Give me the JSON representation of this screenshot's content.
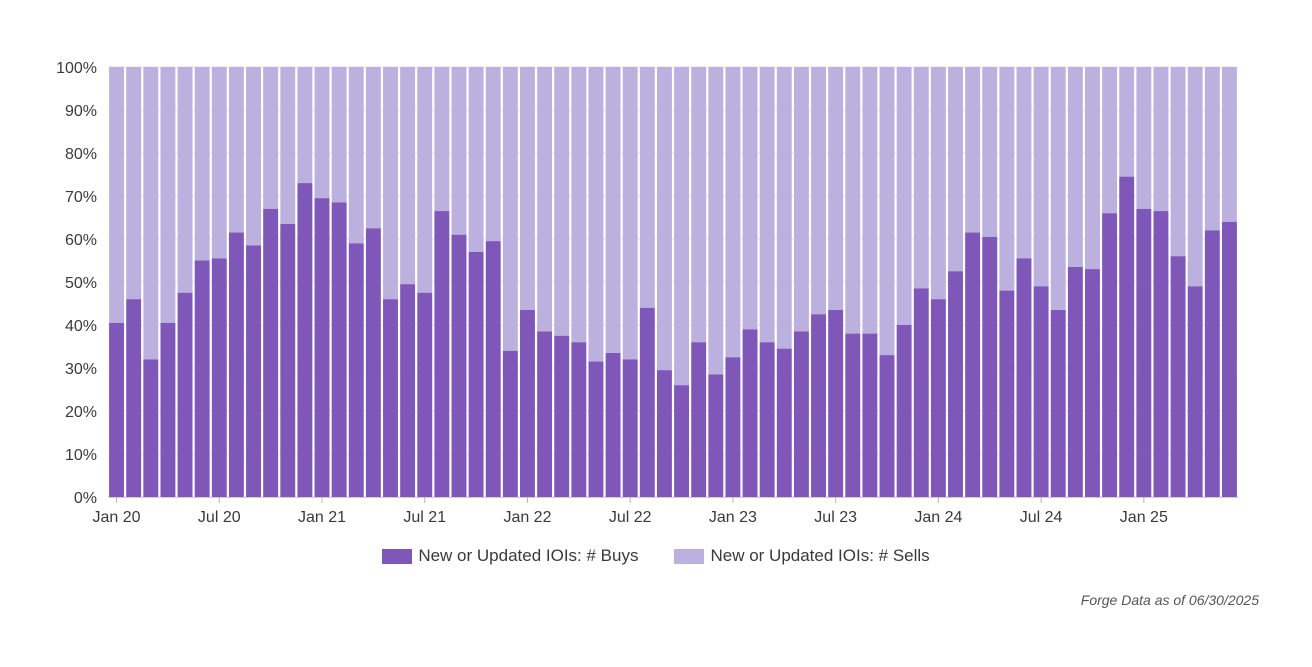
{
  "colors": {
    "buys": "#7e57b8",
    "sells": "#bcb1de",
    "grid": "#e6e6e6",
    "axis_text": "#3a3a3a"
  },
  "legend": {
    "buys_label": "New or Updated IOIs: # Buys",
    "sells_label": "New or Updated IOIs: # Sells"
  },
  "footnote": "Forge Data as of 06/30/2025",
  "chart_data": {
    "type": "bar",
    "stacked": true,
    "percent_stacked": true,
    "y_ticks": [
      "0%",
      "10%",
      "20%",
      "30%",
      "40%",
      "50%",
      "60%",
      "70%",
      "80%",
      "90%",
      "100%"
    ],
    "ylim": [
      0,
      100
    ],
    "x_tick_labels": [
      {
        "index": 0,
        "label": "Jan 20"
      },
      {
        "index": 6,
        "label": "Jul 20"
      },
      {
        "index": 12,
        "label": "Jan 21"
      },
      {
        "index": 18,
        "label": "Jul 21"
      },
      {
        "index": 24,
        "label": "Jan 22"
      },
      {
        "index": 30,
        "label": "Jul 22"
      },
      {
        "index": 36,
        "label": "Jan 23"
      },
      {
        "index": 42,
        "label": "Jul 23"
      },
      {
        "index": 48,
        "label": "Jan 24"
      },
      {
        "index": 54,
        "label": "Jul 24"
      },
      {
        "index": 60,
        "label": "Jan 25"
      }
    ],
    "months": [
      "Jan 20",
      "Feb 20",
      "Mar 20",
      "Apr 20",
      "May 20",
      "Jun 20",
      "Jul 20",
      "Aug 20",
      "Sep 20",
      "Oct 20",
      "Nov 20",
      "Dec 20",
      "Jan 21",
      "Feb 21",
      "Mar 21",
      "Apr 21",
      "May 21",
      "Jun 21",
      "Jul 21",
      "Aug 21",
      "Sep 21",
      "Oct 21",
      "Nov 21",
      "Dec 21",
      "Jan 22",
      "Feb 22",
      "Mar 22",
      "Apr 22",
      "May 22",
      "Jun 22",
      "Jul 22",
      "Aug 22",
      "Sep 22",
      "Oct 22",
      "Nov 22",
      "Dec 22",
      "Jan 23",
      "Feb 23",
      "Mar 23",
      "Apr 23",
      "May 23",
      "Jun 23",
      "Jul 23",
      "Aug 23",
      "Sep 23",
      "Oct 23",
      "Nov 23",
      "Dec 23",
      "Jan 24",
      "Feb 24",
      "Mar 24",
      "Apr 24",
      "May 24",
      "Jun 24",
      "Jul 24",
      "Aug 24",
      "Sep 24",
      "Oct 24",
      "Nov 24",
      "Dec 24",
      "Jan 25",
      "Feb 25",
      "Mar 25",
      "Apr 25",
      "May 25",
      "Jun 25"
    ],
    "series": [
      {
        "name": "New or Updated IOIs: # Buys",
        "values": [
          40.5,
          46,
          32,
          40.5,
          47.5,
          55,
          55.5,
          61.5,
          58.5,
          67,
          63.5,
          73,
          69.5,
          68.5,
          59,
          62.5,
          46,
          49.5,
          47.5,
          66.5,
          61,
          57,
          59.5,
          34,
          43.5,
          38.5,
          37.5,
          36,
          31.5,
          33.5,
          32,
          44,
          29.5,
          26,
          36,
          28.5,
          32.5,
          39,
          36,
          34.5,
          38.5,
          42.5,
          43.5,
          38,
          38,
          33,
          40,
          48.5,
          46,
          52.5,
          61.5,
          60.5,
          48,
          55.5,
          49,
          43.5,
          53.5,
          53,
          66,
          74.5,
          67,
          66.5,
          56,
          49,
          62,
          64
        ]
      },
      {
        "name": "New or Updated IOIs: # Sells",
        "values": [
          59.5,
          54,
          68,
          59.5,
          52.5,
          45,
          44.5,
          38.5,
          41.5,
          33,
          36.5,
          27,
          30.5,
          31.5,
          41,
          37.5,
          54,
          50.5,
          52.5,
          33.5,
          39,
          43,
          40.5,
          66,
          56.5,
          61.5,
          62.5,
          64,
          68.5,
          66.5,
          68,
          56,
          70.5,
          74,
          64,
          71.5,
          67.5,
          61,
          64,
          65.5,
          61.5,
          57.5,
          56.5,
          62,
          62,
          67,
          60,
          51.5,
          54,
          47.5,
          38.5,
          39.5,
          52,
          44.5,
          51,
          56.5,
          46.5,
          47,
          34,
          25.5,
          33,
          33.5,
          44,
          51,
          38,
          36
        ]
      }
    ]
  }
}
